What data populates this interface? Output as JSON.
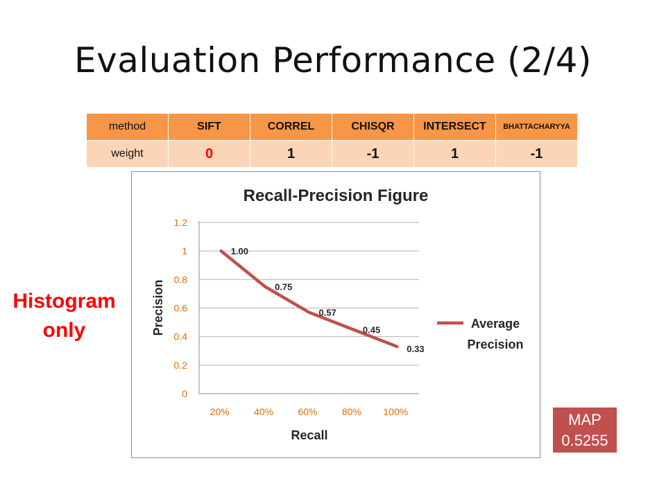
{
  "slide": {
    "title": "Evaluation Performance (2/4)",
    "side_label_line1": "Histogram",
    "side_label_line2": "only"
  },
  "weights_table": {
    "header": [
      "method",
      "SIFT",
      "CORREL",
      "CHISQR",
      "INTERSECT",
      "BHATTACHARYYA"
    ],
    "row": [
      "weight",
      "0",
      "1",
      "-1",
      "1",
      "-1"
    ]
  },
  "map": {
    "label": "MAP",
    "value": "0.5255"
  },
  "chart_data": {
    "type": "line",
    "title": "Recall-Precision Figure",
    "xlabel": "Recall",
    "ylabel": "Precision",
    "categories": [
      "20%",
      "40%",
      "60%",
      "80%",
      "100%"
    ],
    "series": [
      {
        "name": "Average Precision",
        "values": [
          1.0,
          0.75,
          0.57,
          0.45,
          0.33
        ],
        "data_labels": [
          "1.00",
          "0.75",
          "0.57",
          "0.45",
          "0.33"
        ]
      }
    ],
    "ylim": [
      0,
      1.2
    ],
    "yticks": [
      0,
      0.2,
      0.4,
      0.6,
      0.8,
      1,
      1.2
    ],
    "ytick_labels": [
      "0",
      "0.2",
      "0.4",
      "0.6",
      "0.8",
      "1",
      "1.2"
    ],
    "grid": true,
    "legend_position": "right",
    "colors": {
      "series": "#c0504d",
      "tick_labels": "#e46c0a",
      "grid": "#b3b3b3"
    }
  }
}
